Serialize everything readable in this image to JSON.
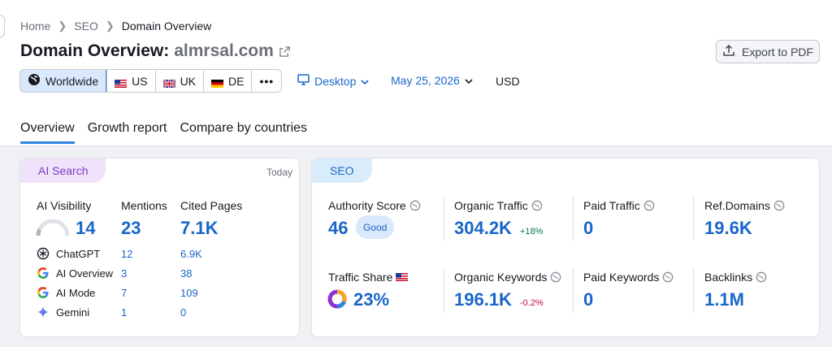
{
  "breadcrumb": [
    "Home",
    "SEO",
    "Domain Overview"
  ],
  "header": {
    "title_prefix": "Domain Overview:",
    "domain": "almrsal.com",
    "export_label": "Export to PDF"
  },
  "regions": [
    {
      "label": "Worldwide",
      "icon": "globe-icon"
    },
    {
      "label": "US",
      "icon": "us-flag-icon"
    },
    {
      "label": "UK",
      "icon": "uk-flag-icon"
    },
    {
      "label": "DE",
      "icon": "de-flag-icon"
    }
  ],
  "more_label": "•••",
  "device": "Desktop",
  "date": "May 25, 2026",
  "currency": "USD",
  "tabs": [
    "Overview",
    "Growth report",
    "Compare by countries"
  ],
  "ai_card": {
    "tag": "AI Search",
    "today": "Today",
    "col_visibility": "AI Visibility",
    "col_mentions": "Mentions",
    "col_cited": "Cited Pages",
    "visibility_value": "14",
    "visibility_fraction": 0.14,
    "mentions_value": "23",
    "cited_value": "7.1K",
    "rows": [
      {
        "name": "ChatGPT",
        "mentions": "12",
        "cited": "6.9K",
        "icon": "chatgpt-icon"
      },
      {
        "name": "AI Overview",
        "mentions": "3",
        "cited": "38",
        "icon": "google-icon"
      },
      {
        "name": "AI Mode",
        "mentions": "7",
        "cited": "109",
        "icon": "google-icon"
      },
      {
        "name": "Gemini",
        "mentions": "1",
        "cited": "0",
        "icon": "gemini-icon"
      }
    ]
  },
  "seo_card": {
    "tag": "SEO",
    "authority_label": "Authority Score",
    "authority_value": "46",
    "authority_badge": "Good",
    "organic_traffic_label": "Organic Traffic",
    "organic_traffic_value": "304.2K",
    "organic_traffic_delta": "+18%",
    "paid_traffic_label": "Paid Traffic",
    "paid_traffic_value": "0",
    "ref_domains_label": "Ref.Domains",
    "ref_domains_value": "19.6K",
    "traffic_share_label": "Traffic Share",
    "traffic_share_value": "23%",
    "organic_keywords_label": "Organic Keywords",
    "organic_keywords_value": "196.1K",
    "organic_keywords_delta": "-0.2%",
    "paid_keywords_label": "Paid Keywords",
    "paid_keywords_value": "0",
    "backlinks_label": "Backlinks",
    "backlinks_value": "1.1M"
  },
  "colors": {
    "accent": "#1a66c8",
    "ai_tag_bg": "#f0e2fb",
    "ai_tag_text": "#7a3cc4",
    "seo_tag_bg": "#d9ecfb",
    "seo_tag_text": "#1a66c8",
    "positive": "#007a4d",
    "negative": "#c40d3a"
  }
}
